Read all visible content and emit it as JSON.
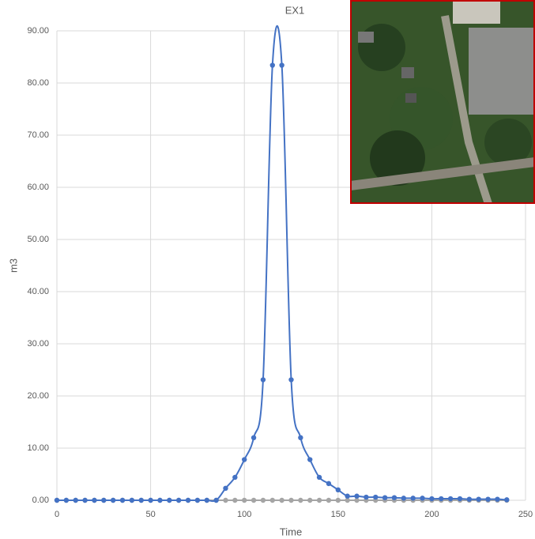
{
  "chart_data": {
    "type": "scatter-smooth",
    "title": "EX1",
    "x_label": "Time",
    "y_label": "m3",
    "x": [
      0,
      5,
      10,
      15,
      20,
      25,
      30,
      35,
      40,
      45,
      50,
      55,
      60,
      65,
      70,
      75,
      80,
      85,
      90,
      95,
      100,
      105,
      110,
      115,
      120,
      125,
      130,
      135,
      140,
      145,
      150,
      155,
      160,
      165,
      170,
      175,
      180,
      185,
      190,
      195,
      200,
      205,
      210,
      215,
      220,
      225,
      230,
      235,
      240
    ],
    "series": [
      {
        "color": "#a5a5a5",
        "values": [
          0,
          0,
          0,
          0,
          0,
          0,
          0,
          0,
          0,
          0,
          0,
          0,
          0,
          0,
          0,
          0,
          0,
          0,
          0,
          0,
          0,
          0,
          0,
          0,
          0,
          0,
          0,
          0,
          0,
          0,
          0,
          0,
          0,
          0,
          0,
          0,
          0,
          0,
          0,
          0,
          0,
          0,
          0,
          0,
          0,
          0,
          0,
          0,
          0
        ]
      },
      {
        "color": "#4472c4",
        "values": [
          0,
          0,
          0,
          0,
          0,
          0,
          0,
          0,
          0,
          0,
          0,
          0,
          0,
          0,
          0,
          0,
          0,
          0,
          2.3,
          4.4,
          7.8,
          12.0,
          23.1,
          83.4,
          83.4,
          23.1,
          12.0,
          7.8,
          4.4,
          3.2,
          2.0,
          0.8,
          0.8,
          0.6,
          0.6,
          0.5,
          0.5,
          0.4,
          0.4,
          0.4,
          0.3,
          0.3,
          0.3,
          0.3,
          0.2,
          0.2,
          0.2,
          0.2,
          0.1
        ]
      }
    ],
    "xlim": [
      0,
      250
    ],
    "xticks": [
      0,
      50,
      100,
      150,
      200,
      250
    ],
    "ylim": [
      0,
      90
    ],
    "yticks": [
      {
        "value": 0,
        "label": "0.00"
      },
      {
        "value": 10,
        "label": "10.00"
      },
      {
        "value": 20,
        "label": "20.00"
      },
      {
        "value": 30,
        "label": "30.00"
      },
      {
        "value": 40,
        "label": "40.00"
      },
      {
        "value": 50,
        "label": "50.00"
      },
      {
        "value": 60,
        "label": "60.00"
      },
      {
        "value": 70,
        "label": "70.00"
      },
      {
        "value": 80,
        "label": "80.00"
      },
      {
        "value": 90,
        "label": "90.00"
      }
    ],
    "grid": true
  }
}
